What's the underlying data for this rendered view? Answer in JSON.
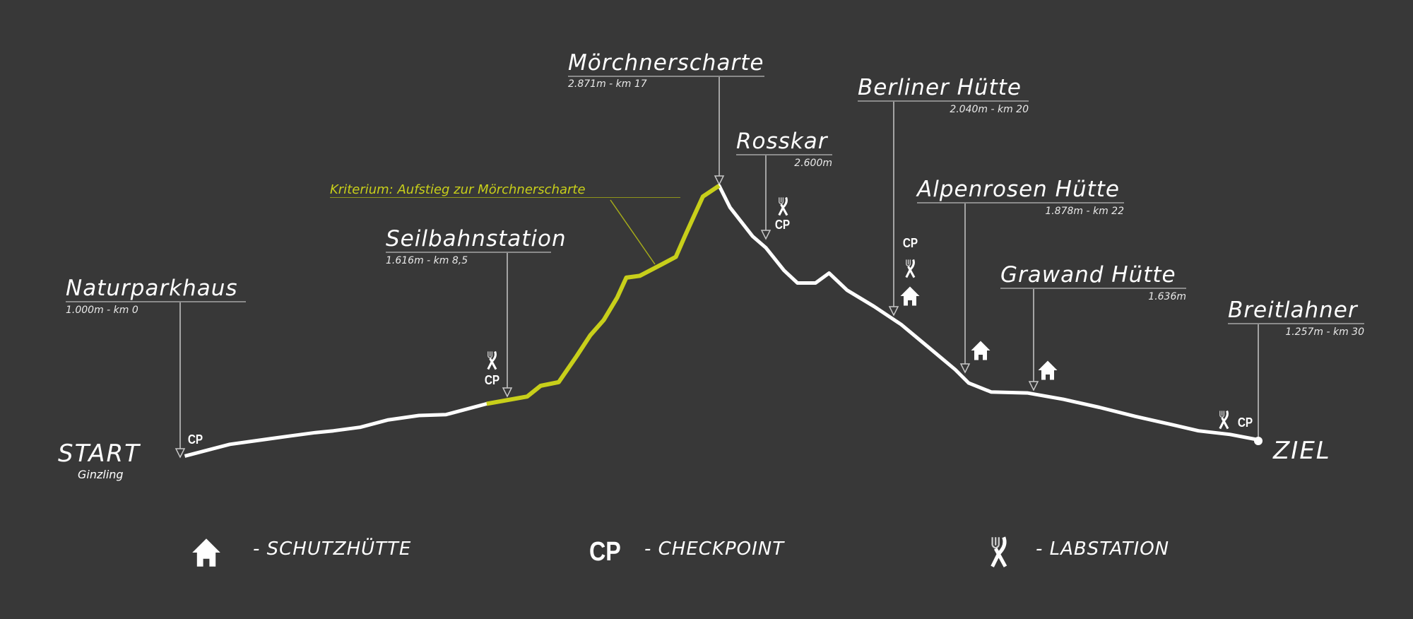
{
  "start": {
    "label": "START",
    "place": "Ginzling"
  },
  "finish": {
    "label": "ZIEL"
  },
  "criterion": {
    "label": "Kriterium: Aufstieg zur Mörchnerscharte",
    "color": "#c8cf1a"
  },
  "waypoints": [
    {
      "name": "Naturparkhaus",
      "info": "1.000m - km 0",
      "elevation_m": 1000,
      "km": 0,
      "icons": [
        "cp"
      ]
    },
    {
      "name": "Seilbahnstation",
      "info": "1.616m - km 8,5",
      "elevation_m": 1616,
      "km": 8.5,
      "icons": [
        "labstation",
        "cp"
      ]
    },
    {
      "name": "Mörchnerscharte",
      "info": "2.871m - km 17",
      "elevation_m": 2871,
      "km": 17,
      "icons": []
    },
    {
      "name": "Rosskar",
      "info": "2.600m",
      "elevation_m": 2600,
      "icons": [
        "labstation",
        "cp"
      ]
    },
    {
      "name": "Berliner Hütte",
      "info": "2.040m - km 20",
      "elevation_m": 2040,
      "km": 20,
      "icons": [
        "cp",
        "labstation",
        "schutzhuette"
      ]
    },
    {
      "name": "Alpenrosen Hütte",
      "info": "1.878m - km 22",
      "elevation_m": 1878,
      "km": 22,
      "icons": [
        "schutzhuette"
      ]
    },
    {
      "name": "Grawand Hütte",
      "info": "1.636m",
      "elevation_m": 1636,
      "icons": [
        "schutzhuette"
      ]
    },
    {
      "name": "Breitlahner",
      "info": "1.257m - km 30",
      "elevation_m": 1257,
      "km": 30,
      "icons": [
        "labstation",
        "cp"
      ]
    }
  ],
  "icons": {
    "cp_text": "CP",
    "schutzhuette": "house-icon",
    "labstation": "fork-knife-icon"
  },
  "legend": [
    {
      "icon": "house-icon",
      "label": "- SCHUTZHÜTTE"
    },
    {
      "icon": "CP",
      "label": "- CHECKPOINT"
    },
    {
      "icon": "fork-knife-icon",
      "label": "- LABSTATION"
    }
  ],
  "colors": {
    "background": "#383838",
    "profile": "#ffffff",
    "criterion": "#c8cf1a"
  }
}
